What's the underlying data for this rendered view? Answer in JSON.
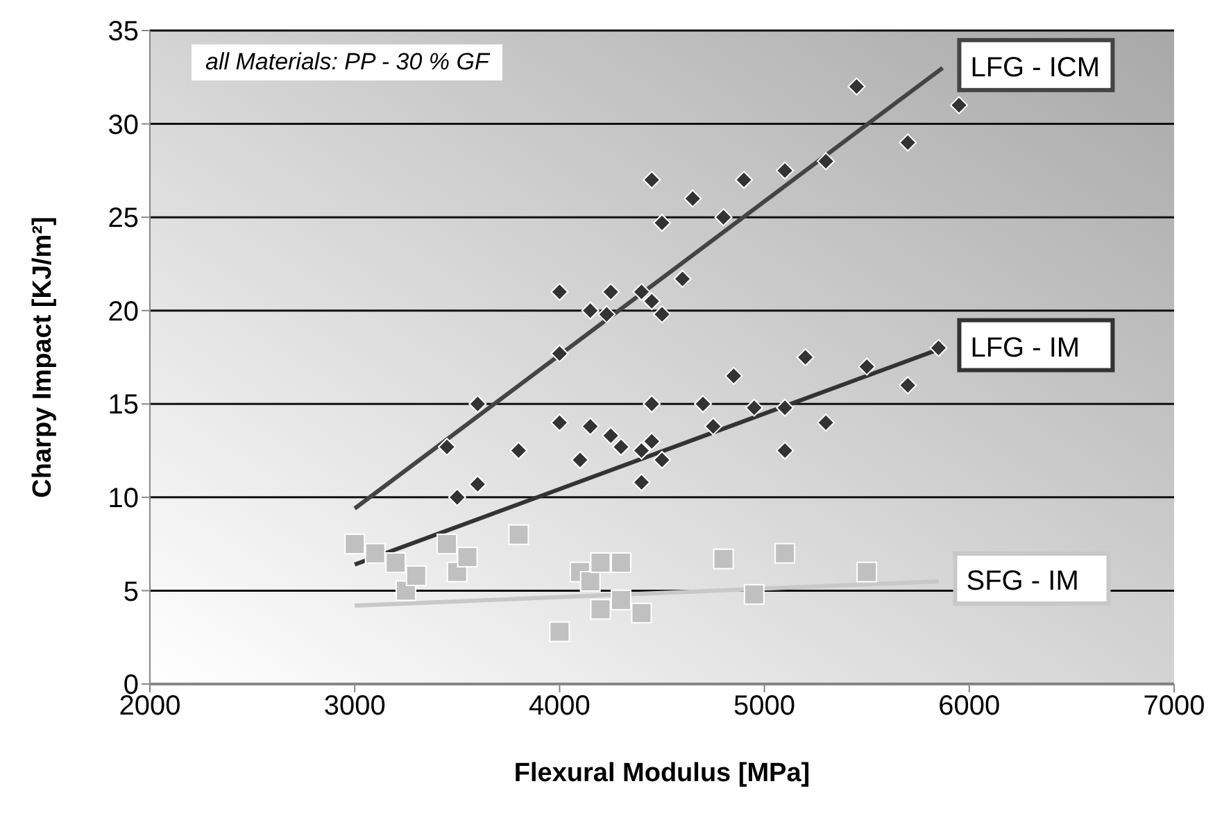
{
  "chart_data": {
    "type": "scatter",
    "xlabel": "Flexural Modulus [MPa]",
    "ylabel": "Charpy Impact   [KJ/m²]",
    "annotations": [
      "all Materials: PP - 30 % GF"
    ],
    "xlim": [
      2000,
      7000
    ],
    "xticks": [
      2000,
      3000,
      4000,
      5000,
      6000,
      7000
    ],
    "ylim": [
      0,
      35
    ],
    "yticks": [
      0,
      5,
      10,
      15,
      20,
      25,
      30,
      35
    ],
    "grid": "y",
    "series": [
      {
        "marker": "diamond",
        "color": "#333333",
        "x": [
          3450,
          3600,
          4000,
          4000,
          4150,
          4250,
          4230,
          4400,
          4450,
          4450,
          4500,
          4500,
          4600,
          4650,
          4800,
          4900,
          5100,
          5300,
          5450,
          5700,
          5950
        ],
        "values": [
          12.7,
          15,
          17.7,
          21,
          20,
          21,
          19.8,
          21,
          27,
          20.5,
          24.7,
          19.8,
          21.7,
          26,
          25,
          27,
          27.5,
          28,
          32,
          29,
          31
        ]
      },
      {
        "marker": "diamond",
        "color": "#333333",
        "x": [
          3500,
          3600,
          3800,
          4000,
          4100,
          4150,
          4250,
          4300,
          4400,
          4400,
          4450,
          4450,
          4500,
          4700,
          4750,
          4850,
          4950,
          5100,
          5100,
          5200,
          5300,
          5500,
          5700,
          5850
        ],
        "values": [
          10,
          10.7,
          12.5,
          14,
          12,
          13.8,
          13.3,
          12.7,
          10.8,
          12.5,
          15,
          13,
          12,
          15,
          13.8,
          16.5,
          14.8,
          14.8,
          12.5,
          17.5,
          14,
          17,
          16,
          18
        ]
      },
      {
        "marker": "square",
        "color": "#c0c0c0",
        "x": [
          3000,
          3100,
          3200,
          3250,
          3300,
          3450,
          3500,
          3550,
          3800,
          4000,
          4100,
          4150,
          4200,
          4200,
          4300,
          4300,
          4400,
          4800,
          4950,
          5100,
          5500
        ],
        "values": [
          7.5,
          7,
          6.5,
          5,
          5.8,
          7.5,
          6,
          6.8,
          8,
          2.8,
          6,
          5.5,
          6.5,
          4,
          6.5,
          4.5,
          3.8,
          6.7,
          4.8,
          7,
          6
        ]
      },
      {
        "type": "line",
        "name": "LFG - ICM",
        "color": "#444444",
        "x": [
          3000,
          5870
        ],
        "values": [
          9.4,
          33
        ]
      },
      {
        "type": "line",
        "name": "LFG -  IM",
        "color": "#333333",
        "x": [
          3000,
          5870
        ],
        "values": [
          6.4,
          18
        ]
      },
      {
        "type": "line",
        "name": "SFG -  IM",
        "color": "#c8c8c8",
        "x": [
          3000,
          5850
        ],
        "values": [
          4.2,
          5.5
        ]
      }
    ]
  }
}
